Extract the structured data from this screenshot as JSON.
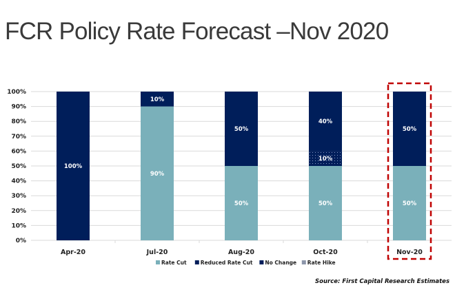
{
  "title": "FCR Policy Rate Forecast –Nov 2020",
  "source": "Source: First Capital Research Estimates",
  "highlight": {
    "category": "Nov-20",
    "color": "#C00000",
    "style": "dashed"
  },
  "chart_data": {
    "type": "bar",
    "stacked": true,
    "title": "FCR Policy Rate Forecast –Nov 2020",
    "xlabel": "",
    "ylabel": "",
    "ylim": [
      0,
      100
    ],
    "yticks": [
      "0%",
      "10%",
      "20%",
      "30%",
      "40%",
      "50%",
      "60%",
      "70%",
      "80%",
      "90%",
      "100%"
    ],
    "grid": true,
    "legend_position": "bottom",
    "categories": [
      "Apr-20",
      "Jul-20",
      "Aug-20",
      "Oct-20",
      "Nov-20"
    ],
    "series": [
      {
        "name": "Rate Cut",
        "color": "#7AB0BA",
        "pattern": "solid",
        "values": [
          0,
          90,
          50,
          50,
          50
        ]
      },
      {
        "name": "Reduced Rate Cut",
        "color": "#001E5A",
        "pattern": "dotted",
        "values": [
          0,
          0,
          0,
          10,
          0
        ]
      },
      {
        "name": "No Change",
        "color": "#001E5A",
        "pattern": "solid",
        "values": [
          100,
          10,
          50,
          40,
          50
        ]
      },
      {
        "name": "Rate Hike",
        "color": "#8D96AA",
        "pattern": "solid",
        "values": [
          0,
          0,
          0,
          0,
          0
        ]
      }
    ],
    "value_label_suffix": "%"
  }
}
